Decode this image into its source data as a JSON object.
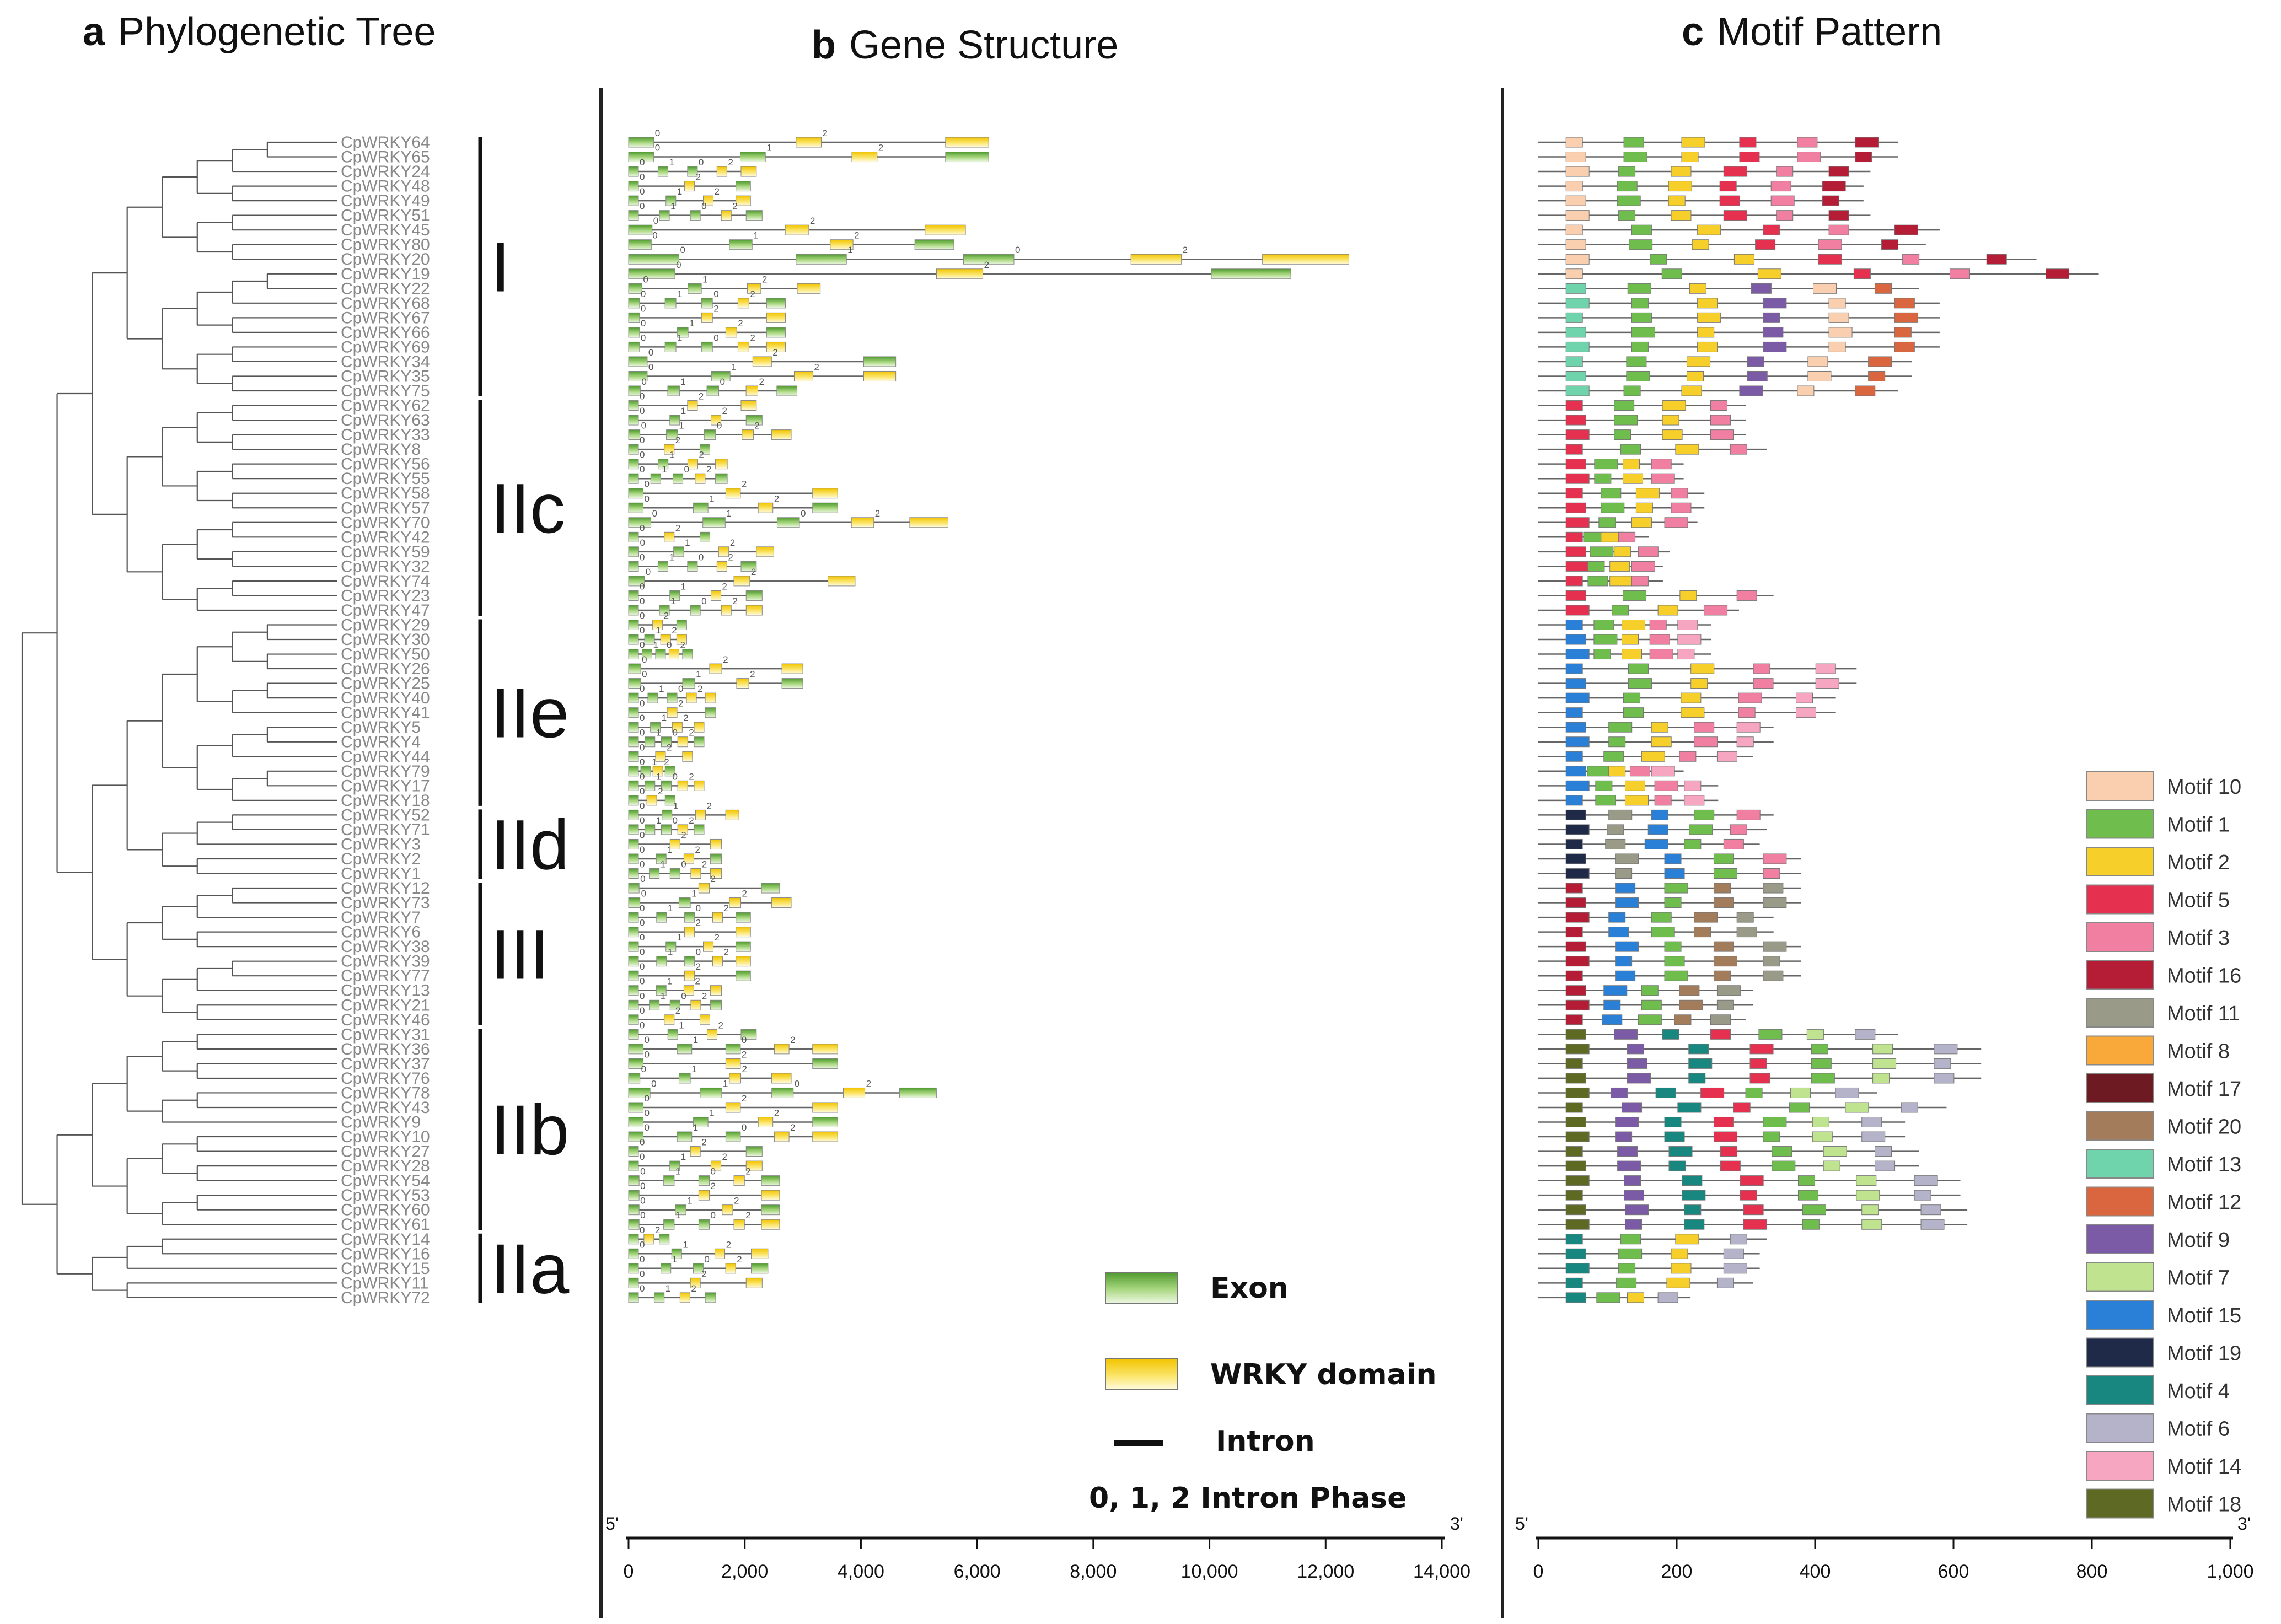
{
  "panels": {
    "a": {
      "letter": "a",
      "title": "Phylogenetic Tree"
    },
    "b": {
      "letter": "b",
      "title": "Gene Structure"
    },
    "c": {
      "letter": "c",
      "title": "Motif Pattern"
    }
  },
  "genes": [
    "CpWRKY64",
    "CpWRKY65",
    "CpWRKY24",
    "CpWRKY48",
    "CpWRKY49",
    "CpWRKY51",
    "CpWRKY45",
    "CpWRKY80",
    "CpWRKY20",
    "CpWRKY19",
    "CpWRKY22",
    "CpWRKY68",
    "CpWRKY67",
    "CpWRKY66",
    "CpWRKY69",
    "CpWRKY34",
    "CpWRKY35",
    "CpWRKY75",
    "CpWRKY62",
    "CpWRKY63",
    "CpWRKY33",
    "CpWRKY8",
    "CpWRKY56",
    "CpWRKY55",
    "CpWRKY58",
    "CpWRKY57",
    "CpWRKY70",
    "CpWRKY42",
    "CpWRKY59",
    "CpWRKY32",
    "CpWRKY74",
    "CpWRKY23",
    "CpWRKY47",
    "CpWRKY29",
    "CpWRKY30",
    "CpWRKY50",
    "CpWRKY26",
    "CpWRKY25",
    "CpWRKY40",
    "CpWRKY41",
    "CpWRKY5",
    "CpWRKY4",
    "CpWRKY44",
    "CpWRKY79",
    "CpWRKY17",
    "CpWRKY18",
    "CpWRKY52",
    "CpWRKY71",
    "CpWRKY3",
    "CpWRKY2",
    "CpWRKY1",
    "CpWRKY12",
    "CpWRKY73",
    "CpWRKY7",
    "CpWRKY6",
    "CpWRKY38",
    "CpWRKY39",
    "CpWRKY77",
    "CpWRKY13",
    "CpWRKY21",
    "CpWRKY46",
    "CpWRKY31",
    "CpWRKY36",
    "CpWRKY37",
    "CpWRKY76",
    "CpWRKY78",
    "CpWRKY43",
    "CpWRKY9",
    "CpWRKY10",
    "CpWRKY27",
    "CpWRKY28",
    "CpWRKY54",
    "CpWRKY53",
    "CpWRKY60",
    "CpWRKY61",
    "CpWRKY14",
    "CpWRKY16",
    "CpWRKY15",
    "CpWRKY11",
    "CpWRKY72"
  ],
  "groups": [
    {
      "label": "I",
      "first": 0,
      "last": 17
    },
    {
      "label": "IIc",
      "first": 18,
      "last": 32
    },
    {
      "label": "IIe",
      "first": 33,
      "last": 45
    },
    {
      "label": "IId",
      "first": 46,
      "last": 50
    },
    {
      "label": "III",
      "first": 51,
      "last": 60
    },
    {
      "label": "IIb",
      "first": 61,
      "last": 74
    },
    {
      "label": "IIa",
      "first": 75,
      "last": 79
    }
  ],
  "gene_structure": {
    "axis": {
      "min": 0,
      "max": 14000,
      "ticks": [
        "0",
        "2,000",
        "4,000",
        "6,000",
        "8,000",
        "10,000",
        "12,000",
        "14,000"
      ],
      "start_label": "5'",
      "end_label": "3'"
    },
    "gene_lengths_bp": [
      6200,
      6200,
      2200,
      2100,
      2100,
      2300,
      5800,
      5600,
      12400,
      11400,
      3300,
      2700,
      2700,
      2700,
      2700,
      4600,
      4600,
      2900,
      2200,
      2300,
      2800,
      1400,
      1700,
      1700,
      3600,
      3600,
      5500,
      1400,
      2500,
      2200,
      3900,
      2300,
      2300,
      1000,
      1000,
      1100,
      3000,
      3000,
      1500,
      1500,
      1300,
      1300,
      1100,
      800,
      1300,
      800,
      1900,
      1300,
      1600,
      1600,
      1600,
      2600,
      2800,
      2100,
      2100,
      2100,
      2100,
      2100,
      1600,
      1600,
      1400,
      2200,
      3600,
      3600,
      2800,
      5300,
      3600,
      3600,
      3600,
      2300,
      2300,
      2600,
      2600,
      2600,
      2600,
      700,
      2400,
      2400,
      2300,
      1500
    ],
    "legend": {
      "exon": "Exon",
      "wrky_domain": "WRKY domain",
      "intron": "Intron",
      "phase": "0, 1, 2 Intron Phase"
    }
  },
  "motif_pattern": {
    "axis": {
      "min": 0,
      "max": 1000,
      "ticks": [
        "0",
        "200",
        "400",
        "600",
        "800",
        "1,000"
      ],
      "start_label": "5'",
      "end_label": "3'"
    },
    "protein_lengths_aa": [
      520,
      520,
      480,
      470,
      470,
      480,
      580,
      560,
      720,
      810,
      550,
      580,
      580,
      580,
      580,
      540,
      540,
      520,
      300,
      300,
      300,
      330,
      210,
      210,
      240,
      240,
      230,
      160,
      190,
      180,
      180,
      340,
      290,
      250,
      250,
      250,
      460,
      460,
      430,
      430,
      340,
      340,
      310,
      210,
      260,
      260,
      340,
      330,
      320,
      380,
      380,
      380,
      380,
      340,
      340,
      380,
      380,
      380,
      310,
      310,
      300,
      520,
      640,
      640,
      640,
      490,
      590,
      530,
      530,
      550,
      550,
      610,
      610,
      620,
      620,
      330,
      320,
      320,
      310,
      220
    ],
    "legend": [
      "Motif 10",
      "Motif 1",
      "Motif 2",
      "Motif 5",
      "Motif 3",
      "Motif 16",
      "Motif 11",
      "Motif 8",
      "Motif 17",
      "Motif 20",
      "Motif 13",
      "Motif 12",
      "Motif 9",
      "Motif 7",
      "Motif 15",
      "Motif 19",
      "Motif 4",
      "Motif 6",
      "Motif 14",
      "Motif 18"
    ],
    "colors": {
      "Motif 10": "#f9cfb0",
      "Motif 1": "#6fbd4c",
      "Motif 2": "#f7cf2a",
      "Motif 5": "#e5304f",
      "Motif 3": "#f07fa2",
      "Motif 16": "#b51c36",
      "Motif 11": "#9a9a88",
      "Motif 8": "#f8a93a",
      "Motif 17": "#6e1a22",
      "Motif 20": "#a37c5b",
      "Motif 13": "#6fd3ac",
      "Motif 12": "#d9663e",
      "Motif 9": "#7b5ba6",
      "Motif 7": "#bfe38f",
      "Motif 15": "#2a7fd6",
      "Motif 19": "#1e2a48",
      "Motif 4": "#17877f",
      "Motif 6": "#b4b3c9",
      "Motif 14": "#f6a6c0",
      "Motif 18": "#5e6a23"
    }
  }
}
